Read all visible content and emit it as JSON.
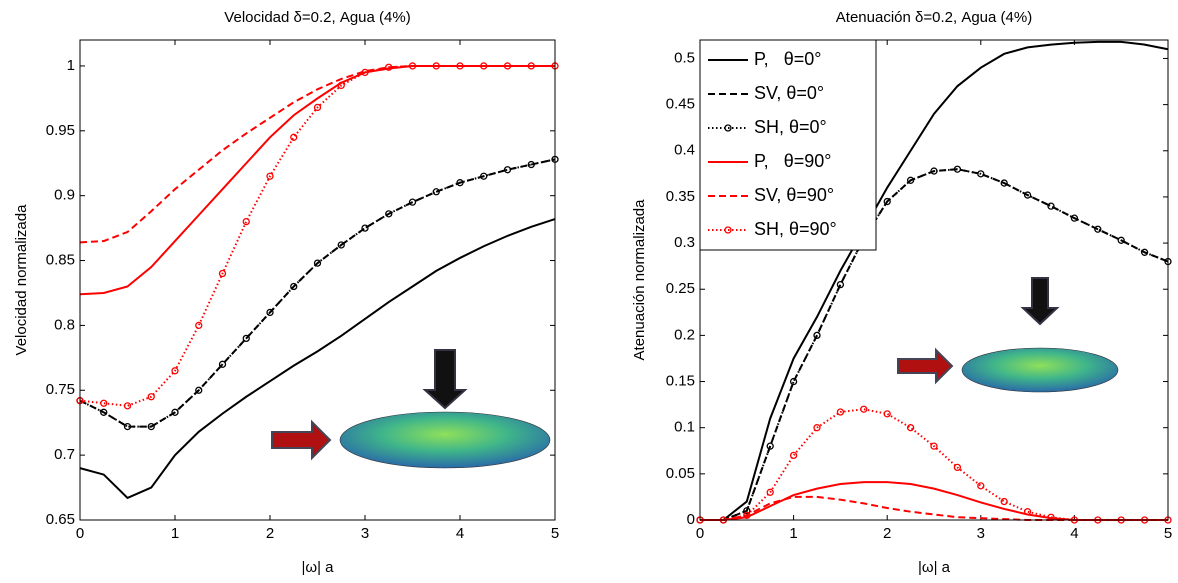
{
  "chart_data": [
    {
      "type": "line",
      "title": "Velocidad δ=0.2, Agua (4%)",
      "x_label": "|ω| a",
      "y_label": "Velocidad normalizada",
      "x": [
        0,
        0.25,
        0.5,
        0.75,
        1,
        1.25,
        1.5,
        1.75,
        2,
        2.25,
        2.5,
        2.75,
        3,
        3.25,
        3.5,
        3.75,
        4,
        4.25,
        4.5,
        4.75,
        5
      ],
      "xlim": [
        0,
        5
      ],
      "xticks": [
        0,
        1,
        2,
        3,
        4,
        5
      ],
      "ylim": [
        0.65,
        1.02
      ],
      "yticks": [
        0.65,
        0.7,
        0.75,
        0.8,
        0.85,
        0.9,
        0.95,
        1
      ],
      "grid": false,
      "series": [
        {
          "name": "P,   θ=0°",
          "color": "#000000",
          "style": "solid",
          "marker": false,
          "values": [
            0.69,
            0.685,
            0.667,
            0.675,
            0.7,
            0.718,
            0.732,
            0.745,
            0.757,
            0.769,
            0.78,
            0.792,
            0.805,
            0.818,
            0.83,
            0.842,
            0.852,
            0.861,
            0.869,
            0.876,
            0.882
          ]
        },
        {
          "name": "SV, θ=0°",
          "color": "#000000",
          "style": "dashed",
          "marker": false,
          "values": [
            0.742,
            0.733,
            0.722,
            0.722,
            0.733,
            0.75,
            0.77,
            0.79,
            0.81,
            0.83,
            0.848,
            0.862,
            0.875,
            0.886,
            0.895,
            0.903,
            0.91,
            0.915,
            0.92,
            0.924,
            0.928
          ]
        },
        {
          "name": "SH, θ=0°",
          "color": "#000000",
          "style": "dotted",
          "marker": true,
          "values": [
            0.742,
            0.733,
            0.722,
            0.722,
            0.733,
            0.75,
            0.77,
            0.79,
            0.81,
            0.83,
            0.848,
            0.862,
            0.875,
            0.886,
            0.895,
            0.903,
            0.91,
            0.915,
            0.92,
            0.924,
            0.928
          ]
        },
        {
          "name": "P,   θ=90°",
          "color": "#ff0000",
          "style": "solid",
          "marker": false,
          "values": [
            0.824,
            0.825,
            0.83,
            0.845,
            0.865,
            0.885,
            0.905,
            0.925,
            0.945,
            0.962,
            0.975,
            0.987,
            0.995,
            0.998,
            1,
            1,
            1,
            1,
            1,
            1,
            1
          ]
        },
        {
          "name": "SV, θ=90°",
          "color": "#ff0000",
          "style": "dashed",
          "marker": false,
          "values": [
            0.864,
            0.865,
            0.872,
            0.888,
            0.905,
            0.92,
            0.935,
            0.948,
            0.96,
            0.972,
            0.982,
            0.99,
            0.996,
            0.999,
            1,
            1,
            1,
            1,
            1,
            1,
            1
          ]
        },
        {
          "name": "SH, θ=90°",
          "color": "#ff0000",
          "style": "dotted",
          "marker": true,
          "values": [
            0.742,
            0.74,
            0.738,
            0.745,
            0.765,
            0.8,
            0.84,
            0.88,
            0.915,
            0.945,
            0.968,
            0.985,
            0.995,
            0.999,
            1,
            1,
            1,
            1,
            1,
            1,
            1
          ]
        }
      ]
    },
    {
      "type": "line",
      "title": "Atenuación δ=0.2, Agua (4%)",
      "x_label": "|ω| a",
      "y_label": "Atenuación normalizada",
      "x": [
        0,
        0.25,
        0.5,
        0.75,
        1,
        1.25,
        1.5,
        1.75,
        2,
        2.25,
        2.5,
        2.75,
        3,
        3.25,
        3.5,
        3.75,
        4,
        4.25,
        4.5,
        4.75,
        5
      ],
      "xlim": [
        0,
        5
      ],
      "xticks": [
        0,
        1,
        2,
        3,
        4,
        5
      ],
      "ylim": [
        0,
        0.52
      ],
      "yticks": [
        0,
        0.05,
        0.1,
        0.15,
        0.2,
        0.25,
        0.3,
        0.35,
        0.4,
        0.45,
        0.5
      ],
      "grid": false,
      "legend": "upper left",
      "series": [
        {
          "name": "P,   θ=0°",
          "color": "#000000",
          "style": "solid",
          "marker": false,
          "values": [
            0,
            0,
            0.02,
            0.11,
            0.175,
            0.22,
            0.27,
            0.315,
            0.36,
            0.4,
            0.44,
            0.47,
            0.49,
            0.505,
            0.512,
            0.515,
            0.517,
            0.518,
            0.518,
            0.515,
            0.51
          ]
        },
        {
          "name": "SV, θ=0°",
          "color": "#000000",
          "style": "dashed",
          "marker": false,
          "values": [
            0,
            0,
            0.01,
            0.08,
            0.15,
            0.2,
            0.255,
            0.305,
            0.345,
            0.368,
            0.378,
            0.38,
            0.375,
            0.365,
            0.352,
            0.34,
            0.327,
            0.315,
            0.303,
            0.29,
            0.28
          ]
        },
        {
          "name": "SH, θ=0°",
          "color": "#000000",
          "style": "dotted",
          "marker": true,
          "values": [
            0,
            0,
            0.01,
            0.08,
            0.15,
            0.2,
            0.255,
            0.305,
            0.345,
            0.368,
            0.378,
            0.38,
            0.375,
            0.365,
            0.352,
            0.34,
            0.327,
            0.315,
            0.303,
            0.29,
            0.28
          ]
        },
        {
          "name": "P,   θ=90°",
          "color": "#ff0000",
          "style": "solid",
          "marker": false,
          "values": [
            0,
            0,
            0.003,
            0.015,
            0.027,
            0.034,
            0.039,
            0.041,
            0.041,
            0.039,
            0.034,
            0.027,
            0.019,
            0.012,
            0.006,
            0.002,
            0,
            0,
            0,
            0,
            0
          ]
        },
        {
          "name": "SV, θ=90°",
          "color": "#ff0000",
          "style": "dashed",
          "marker": false,
          "values": [
            0,
            0,
            0.005,
            0.018,
            0.025,
            0.025,
            0.022,
            0.018,
            0.013,
            0.009,
            0.006,
            0.003,
            0.002,
            0.001,
            0,
            0,
            0,
            0,
            0,
            0,
            0
          ]
        },
        {
          "name": "SH, θ=90°",
          "color": "#ff0000",
          "style": "dotted",
          "marker": true,
          "values": [
            0,
            0,
            0.005,
            0.03,
            0.07,
            0.1,
            0.117,
            0.12,
            0.115,
            0.1,
            0.08,
            0.057,
            0.037,
            0.02,
            0.009,
            0.003,
            0,
            0,
            0,
            0,
            0
          ]
        }
      ]
    }
  ]
}
